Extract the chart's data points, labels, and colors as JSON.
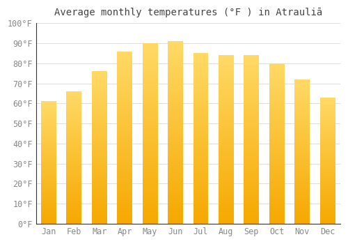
{
  "title": "Average monthly temperatures (°F ) in Atrauliā",
  "months": [
    "Jan",
    "Feb",
    "Mar",
    "Apr",
    "May",
    "Jun",
    "Jul",
    "Aug",
    "Sep",
    "Oct",
    "Nov",
    "Dec"
  ],
  "values": [
    61,
    66,
    76,
    86,
    90,
    91,
    85,
    84,
    84,
    80,
    72,
    63
  ],
  "bar_color_bottom": "#F5A800",
  "bar_color_top": "#FFD966",
  "background_color": "#FFFFFF",
  "grid_color": "#DDDDDD",
  "ylim": [
    0,
    100
  ],
  "ytick_step": 10,
  "title_fontsize": 10,
  "tick_fontsize": 8.5,
  "tick_color": "#888888",
  "bar_width": 0.6
}
